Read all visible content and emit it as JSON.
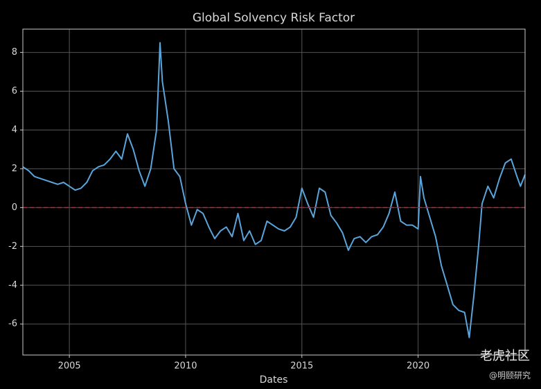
{
  "chart_data": {
    "type": "line",
    "title": "Global Solvency Risk Factor",
    "xlabel": "Dates",
    "x": [
      2003.0,
      2003.25,
      2003.5,
      2003.75,
      2004.0,
      2004.25,
      2004.5,
      2004.75,
      2005.0,
      2005.25,
      2005.5,
      2005.75,
      2006.0,
      2006.25,
      2006.5,
      2006.75,
      2007.0,
      2007.25,
      2007.5,
      2007.75,
      2008.0,
      2008.25,
      2008.5,
      2008.75,
      2008.9,
      2009.0,
      2009.25,
      2009.5,
      2009.75,
      2010.0,
      2010.25,
      2010.5,
      2010.75,
      2011.0,
      2011.25,
      2011.5,
      2011.75,
      2012.0,
      2012.25,
      2012.5,
      2012.75,
      2013.0,
      2013.25,
      2013.5,
      2013.75,
      2014.0,
      2014.25,
      2014.5,
      2014.75,
      2015.0,
      2015.25,
      2015.5,
      2015.75,
      2016.0,
      2016.25,
      2016.5,
      2016.75,
      2017.0,
      2017.25,
      2017.5,
      2017.75,
      2018.0,
      2018.25,
      2018.5,
      2018.75,
      2019.0,
      2019.25,
      2019.5,
      2019.75,
      2020.0,
      2020.1,
      2020.25,
      2020.5,
      2020.75,
      2021.0,
      2021.25,
      2021.5,
      2021.75,
      2022.0,
      2022.2,
      2022.4,
      2022.6,
      2022.75,
      2023.0,
      2023.25,
      2023.5,
      2023.75,
      2024.0,
      2024.25,
      2024.4,
      2024.6
    ],
    "values": [
      2.1,
      1.9,
      1.6,
      1.5,
      1.4,
      1.3,
      1.2,
      1.3,
      1.1,
      0.9,
      1.0,
      1.3,
      1.9,
      2.1,
      2.2,
      2.5,
      2.9,
      2.5,
      3.8,
      3.0,
      1.9,
      1.1,
      2.0,
      4.0,
      8.5,
      6.5,
      4.5,
      2.0,
      1.6,
      0.2,
      -0.9,
      -0.1,
      -0.3,
      -1.0,
      -1.6,
      -1.2,
      -1.0,
      -1.5,
      -0.3,
      -1.7,
      -1.2,
      -1.9,
      -1.7,
      -0.7,
      -0.9,
      -1.1,
      -1.2,
      -1.0,
      -0.5,
      1.0,
      0.2,
      -0.5,
      1.0,
      0.8,
      -0.4,
      -0.8,
      -1.3,
      -2.2,
      -1.6,
      -1.5,
      -1.8,
      -1.5,
      -1.4,
      -1.0,
      -0.3,
      0.8,
      -0.7,
      -0.9,
      -0.9,
      -1.1,
      1.6,
      0.5,
      -0.5,
      -1.5,
      -3.0,
      -4.0,
      -5.0,
      -5.3,
      -5.4,
      -6.7,
      -4.5,
      -2.0,
      0.2,
      1.1,
      0.5,
      1.5,
      2.3,
      2.5,
      1.6,
      1.1,
      1.7
    ],
    "color": "#5aa6dc",
    "hline": {
      "value": 0,
      "color": "#d0202a"
    },
    "xlim": [
      2003,
      2024.6
    ],
    "xticks": [
      2005,
      2010,
      2015,
      2020
    ],
    "ylim": [
      -7.6,
      9.2
    ],
    "yticks": [
      -6,
      -4,
      -2,
      0,
      2,
      4,
      6,
      8
    ],
    "grid": true,
    "watermark": "老虎社区",
    "credit": "@明颐研究"
  }
}
